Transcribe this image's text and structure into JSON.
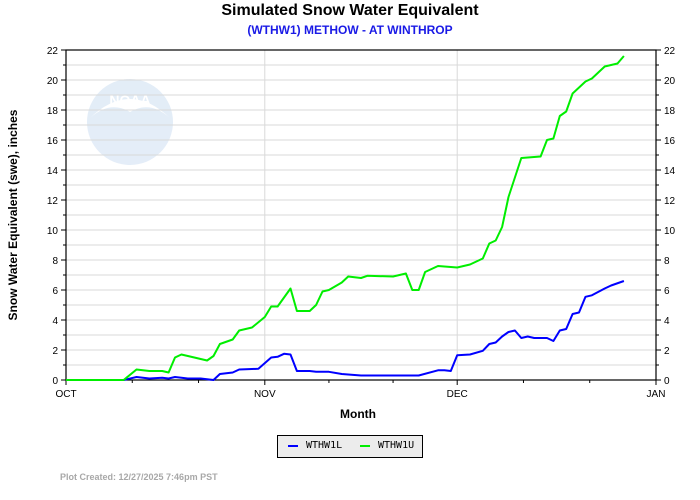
{
  "chart_data": {
    "type": "line",
    "title": "Simulated Snow Water Equivalent",
    "subtitle": "(WTHW1) METHOW - AT WINTHROP",
    "xlabel": "Month",
    "ylabel": "Snow Water Equivalent (swe),  inches",
    "xlim": [
      "2025-10-01",
      "2026-01-01"
    ],
    "ylim": [
      0,
      22
    ],
    "x_ticks": [
      {
        "date": "2025-10-01",
        "label": "OCT"
      },
      {
        "date": "2025-11-01",
        "label": "NOV"
      },
      {
        "date": "2025-12-01",
        "label": "DEC"
      },
      {
        "date": "2026-01-01",
        "label": "JAN"
      }
    ],
    "y_ticks": [
      "0",
      "2",
      "4",
      "6",
      "8",
      "10",
      "12",
      "14",
      "16",
      "18",
      "20",
      "22"
    ],
    "grid": true,
    "legend_position": "bottom-center",
    "series": [
      {
        "name": "WTHW1L",
        "color": "#0000ff",
        "x": [
          "2025-10-01",
          "2025-10-10",
          "2025-10-12",
          "2025-10-14",
          "2025-10-16",
          "2025-10-17",
          "2025-10-18",
          "2025-10-20",
          "2025-10-22",
          "2025-10-24",
          "2025-10-25",
          "2025-10-27",
          "2025-10-28",
          "2025-10-31",
          "2025-11-02",
          "2025-11-03",
          "2025-11-04",
          "2025-11-05",
          "2025-11-06",
          "2025-11-08",
          "2025-11-09",
          "2025-11-11",
          "2025-11-13",
          "2025-11-16",
          "2025-11-25",
          "2025-11-28",
          "2025-11-29",
          "2025-11-30",
          "2025-12-01",
          "2025-12-03",
          "2025-12-05",
          "2025-12-06",
          "2025-12-07",
          "2025-12-08",
          "2025-12-09",
          "2025-12-10",
          "2025-12-11",
          "2025-12-12",
          "2025-12-13",
          "2025-12-15",
          "2025-12-16",
          "2025-12-17",
          "2025-12-18",
          "2025-12-19",
          "2025-12-20",
          "2025-12-21",
          "2025-12-22",
          "2025-12-24",
          "2025-12-25",
          "2025-12-27"
        ],
        "y": [
          0,
          0,
          0.2,
          0.1,
          0.15,
          0.1,
          0.2,
          0.1,
          0.1,
          0,
          0.4,
          0.5,
          0.7,
          0.75,
          1.5,
          1.55,
          1.75,
          1.7,
          0.6,
          0.6,
          0.55,
          0.55,
          0.4,
          0.3,
          0.3,
          0.65,
          0.65,
          0.6,
          1.65,
          1.7,
          1.95,
          2.4,
          2.5,
          2.9,
          3.2,
          3.3,
          2.8,
          2.9,
          2.8,
          2.8,
          2.6,
          3.3,
          3.4,
          4.4,
          4.5,
          5.55,
          5.65,
          6.1,
          6.3,
          6.6
        ]
      },
      {
        "name": "WTHW1U",
        "color": "#00ee00",
        "x": [
          "2025-10-01",
          "2025-10-10",
          "2025-10-12",
          "2025-10-14",
          "2025-10-16",
          "2025-10-17",
          "2025-10-18",
          "2025-10-19",
          "2025-10-21",
          "2025-10-23",
          "2025-10-24",
          "2025-10-25",
          "2025-10-27",
          "2025-10-28",
          "2025-10-30",
          "2025-11-01",
          "2025-11-02",
          "2025-11-03",
          "2025-11-05",
          "2025-11-06",
          "2025-11-08",
          "2025-11-09",
          "2025-11-10",
          "2025-11-11",
          "2025-11-13",
          "2025-11-14",
          "2025-11-16",
          "2025-11-17",
          "2025-11-21",
          "2025-11-23",
          "2025-11-24",
          "2025-11-25",
          "2025-11-26",
          "2025-11-28",
          "2025-12-01",
          "2025-12-03",
          "2025-12-05",
          "2025-12-06",
          "2025-12-07",
          "2025-12-08",
          "2025-12-09",
          "2025-12-10",
          "2025-12-11",
          "2025-12-14",
          "2025-12-15",
          "2025-12-16",
          "2025-12-17",
          "2025-12-18",
          "2025-12-19",
          "2025-12-21",
          "2025-12-22",
          "2025-12-24",
          "2025-12-26",
          "2025-12-27"
        ],
        "y": [
          0,
          0,
          0.7,
          0.6,
          0.6,
          0.5,
          1.5,
          1.7,
          1.5,
          1.3,
          1.6,
          2.4,
          2.7,
          3.3,
          3.5,
          4.2,
          4.9,
          4.9,
          6.1,
          4.6,
          4.6,
          5.0,
          5.9,
          6.0,
          6.5,
          6.9,
          6.8,
          6.95,
          6.9,
          7.1,
          6.0,
          6.0,
          7.2,
          7.6,
          7.5,
          7.7,
          8.1,
          9.1,
          9.3,
          10.2,
          12.2,
          13.5,
          14.8,
          14.9,
          16.0,
          16.1,
          17.6,
          17.9,
          19.1,
          19.9,
          20.1,
          20.9,
          21.1,
          21.6
        ]
      }
    ]
  },
  "watermark": {
    "logo_text": "NOAA"
  },
  "footer": {
    "text": "Plot Created: 12/27/2025 7:46pm PST"
  }
}
